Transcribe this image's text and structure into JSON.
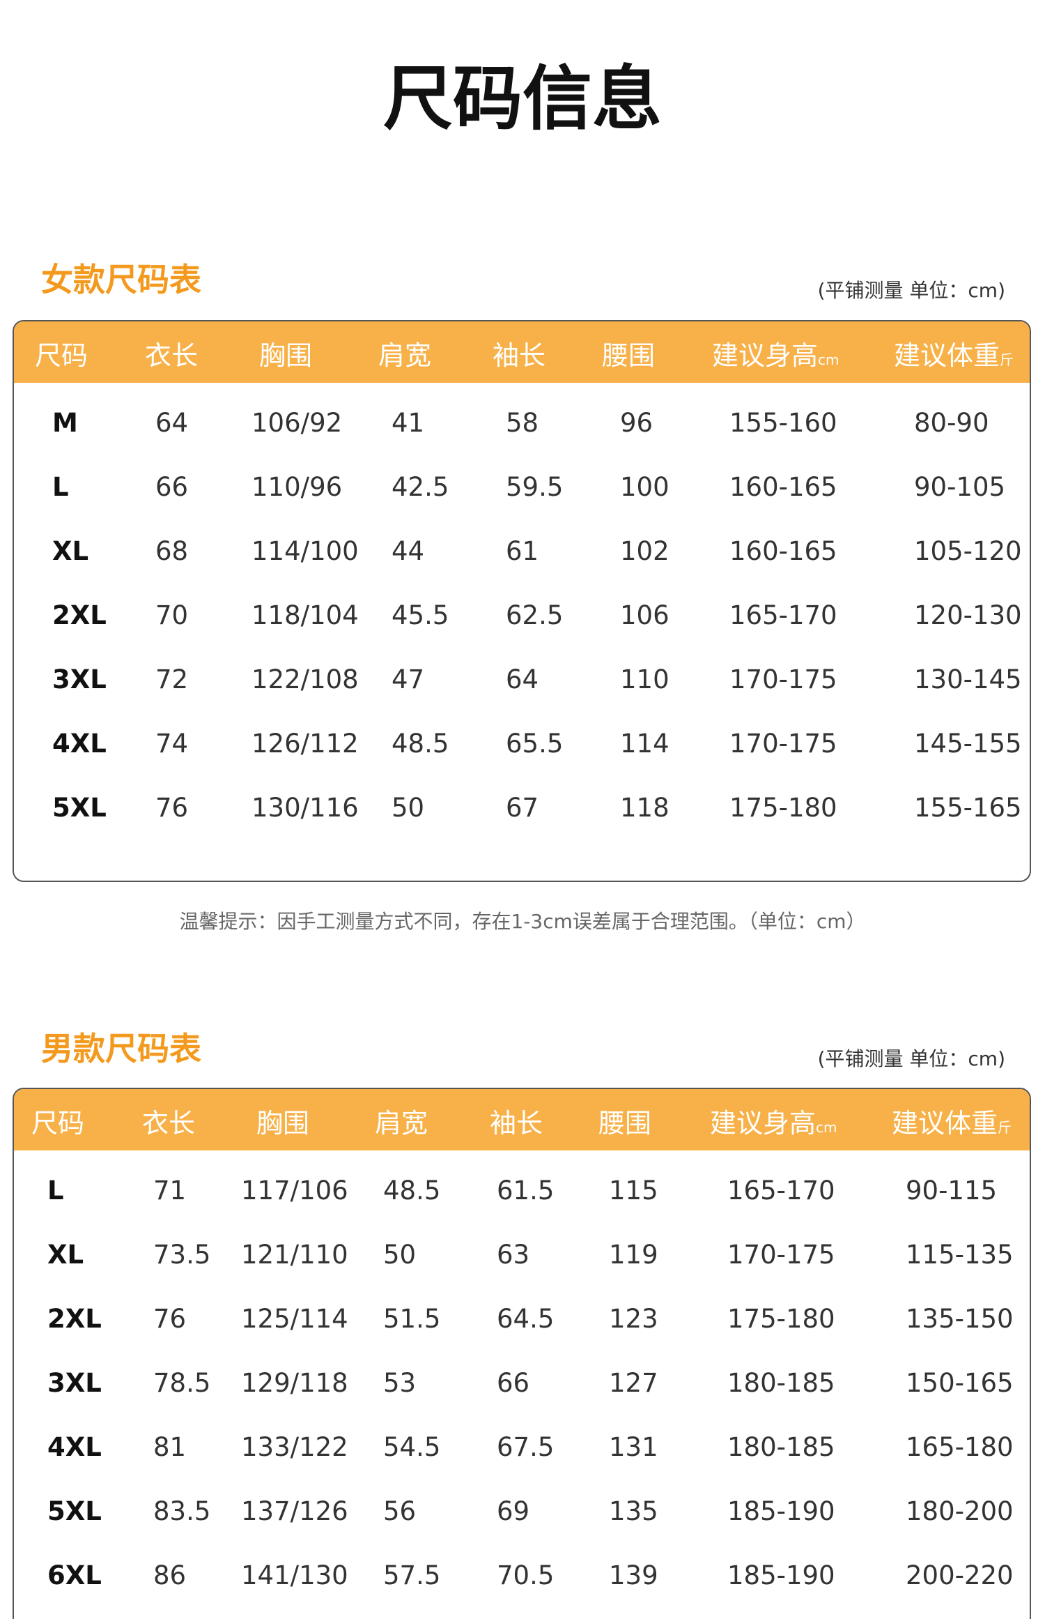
{
  "title": "尺码信息",
  "sections": [
    {
      "title": "女款尺码表",
      "unit_note": "(平铺测量 单位：cm)",
      "header": [
        {
          "text": "尺码"
        },
        {
          "text": "衣长"
        },
        {
          "text": "胸围"
        },
        {
          "text": "肩宽"
        },
        {
          "text": "袖长"
        },
        {
          "text": "腰围"
        },
        {
          "text": "建议身高",
          "unit": "cm"
        },
        {
          "text": "建议体重",
          "unit": "斤"
        }
      ],
      "rows": [
        [
          "M",
          "64",
          "106/92",
          "41",
          "58",
          "96",
          "155-160",
          "80-90"
        ],
        [
          "L",
          "66",
          "110/96",
          "42.5",
          "59.5",
          "100",
          "160-165",
          "90-105"
        ],
        [
          "XL",
          "68",
          "114/100",
          "44",
          "61",
          "102",
          "160-165",
          "105-120"
        ],
        [
          "2XL",
          "70",
          "118/104",
          "45.5",
          "62.5",
          "106",
          "165-170",
          "120-130"
        ],
        [
          "3XL",
          "72",
          "122/108",
          "47",
          "64",
          "110",
          "170-175",
          "130-145"
        ],
        [
          "4XL",
          "74",
          "126/112",
          "48.5",
          "65.5",
          "114",
          "170-175",
          "145-155"
        ],
        [
          "5XL",
          "76",
          "130/116",
          "50",
          "67",
          "118",
          "175-180",
          "155-165"
        ]
      ],
      "note": "温馨提示：因手工测量方式不同，存在1-3cm误差属于合理范围。（单位：cm）"
    },
    {
      "title": "男款尺码表",
      "unit_note": "(平铺测量 单位：cm)",
      "header": [
        {
          "text": "尺码"
        },
        {
          "text": "衣长"
        },
        {
          "text": "胸围"
        },
        {
          "text": "肩宽"
        },
        {
          "text": "袖长"
        },
        {
          "text": "腰围"
        },
        {
          "text": "建议身高",
          "unit": "cm"
        },
        {
          "text": "建议体重",
          "unit": "斤"
        }
      ],
      "rows": [
        [
          "L",
          "71",
          "117/106",
          "48.5",
          "61.5",
          "115",
          "165-170",
          "90-115"
        ],
        [
          "XL",
          "73.5",
          "121/110",
          "50",
          "63",
          "119",
          "170-175",
          "115-135"
        ],
        [
          "2XL",
          "76",
          "125/114",
          "51.5",
          "64.5",
          "123",
          "175-180",
          "135-150"
        ],
        [
          "3XL",
          "78.5",
          "129/118",
          "53",
          "66",
          "127",
          "180-185",
          "150-165"
        ],
        [
          "4XL",
          "81",
          "133/122",
          "54.5",
          "67.5",
          "131",
          "180-185",
          "165-180"
        ],
        [
          "5XL",
          "83.5",
          "137/126",
          "56",
          "69",
          "135",
          "185-190",
          "180-200"
        ],
        [
          "6XL",
          "86",
          "141/130",
          "57.5",
          "70.5",
          "139",
          "185-190",
          "200-220"
        ]
      ]
    }
  ]
}
